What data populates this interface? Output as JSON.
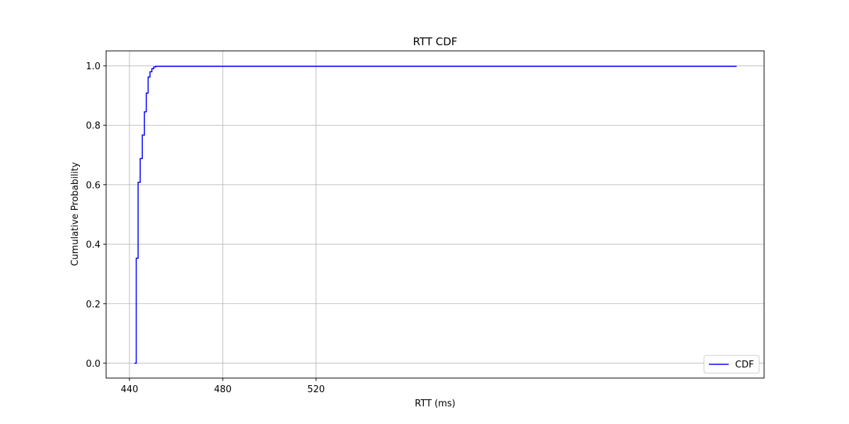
{
  "chart_data": {
    "type": "line",
    "title": "RTT CDF",
    "xlabel": "RTT (ms)",
    "ylabel": "Cumulative Probability",
    "xlim": [
      430,
      712
    ],
    "ylim": [
      -0.05,
      1.05
    ],
    "x_ticks": [
      440,
      480,
      520
    ],
    "y_ticks": [
      "0.0",
      "0.2",
      "0.4",
      "0.6",
      "0.8",
      "1.0"
    ],
    "grid": true,
    "legend_position": "lower right",
    "series": [
      {
        "name": "CDF",
        "color": "#0000ff",
        "drawstyle": "steps-post",
        "x": [
          442.1,
          442.9,
          443.7,
          444.6,
          445.5,
          446.4,
          447.2,
          448.0,
          448.8,
          449.6,
          450.4,
          451.2,
          700
        ],
        "y": [
          0.0,
          0.353,
          0.608,
          0.688,
          0.767,
          0.845,
          0.908,
          0.962,
          0.98,
          0.99,
          0.996,
          0.998,
          1.0
        ]
      }
    ]
  }
}
